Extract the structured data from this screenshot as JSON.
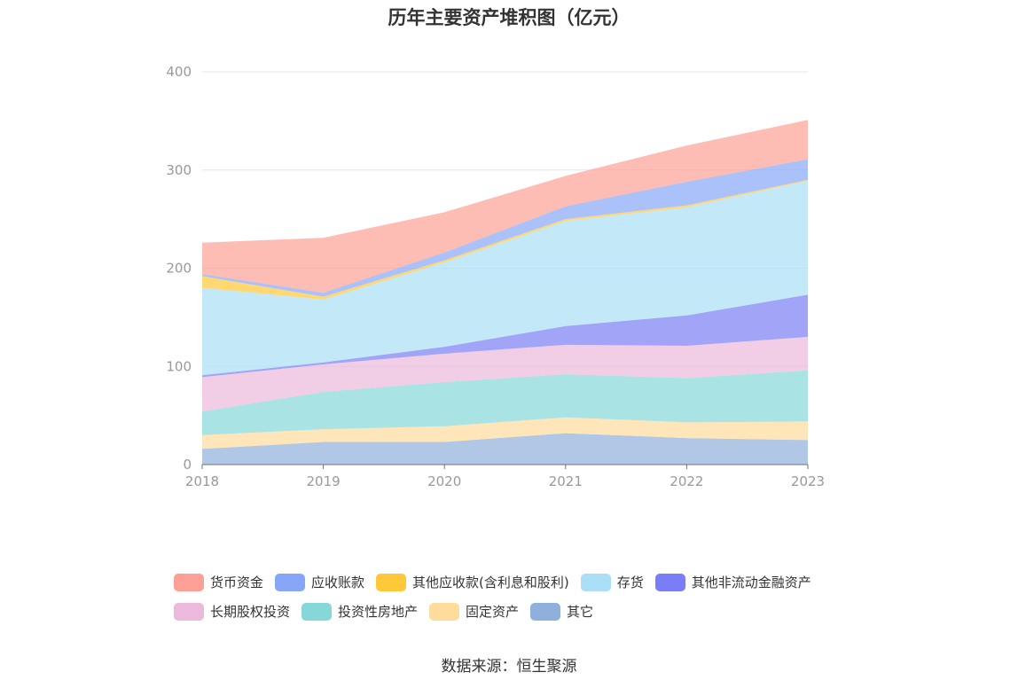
{
  "chart_data": {
    "type": "area",
    "stacked": true,
    "title": "历年主要资产堆积图（亿元）",
    "x": [
      "2018",
      "2019",
      "2020",
      "2021",
      "2022",
      "2023"
    ],
    "y_ticks": [
      "0",
      "100",
      "200",
      "300",
      "400"
    ],
    "ylim": [
      0,
      400
    ],
    "grid": true,
    "legend_position": "bottom",
    "series": [
      {
        "name": "其它",
        "color": "#8fb0dc",
        "values": [
          16,
          23,
          23,
          32,
          27,
          25
        ]
      },
      {
        "name": "固定资产",
        "color": "#ffdb9c",
        "values": [
          14,
          13,
          16,
          16,
          16,
          19
        ]
      },
      {
        "name": "投资性房地产",
        "color": "#86d7d7",
        "values": [
          24,
          38,
          45,
          44,
          45,
          52
        ]
      },
      {
        "name": "长期股权投资",
        "color": "#ebb9db",
        "values": [
          35,
          28,
          29,
          30,
          33,
          34
        ]
      },
      {
        "name": "其他非流动金融资产",
        "color": "#7a7df5",
        "values": [
          2,
          2,
          7,
          19,
          31,
          43
        ]
      },
      {
        "name": "存货",
        "color": "#aadff7",
        "values": [
          89,
          64,
          86,
          107,
          110,
          116
        ]
      },
      {
        "name": "其他应收款(含利息和股利)",
        "color": "#ffc838",
        "values": [
          12,
          3,
          2,
          2,
          2,
          1
        ]
      },
      {
        "name": "应收账款",
        "color": "#88a6f7",
        "values": [
          2,
          4,
          8,
          13,
          24,
          21
        ]
      },
      {
        "name": "货币资金",
        "color": "#fc9f94",
        "values": [
          32,
          56,
          41,
          31,
          37,
          40
        ]
      }
    ],
    "legend_order": [
      "货币资金",
      "应收账款",
      "其他应收款(含利息和股利)",
      "存货",
      "其他非流动金融资产",
      "长期股权投资",
      "投资性房地产",
      "固定资产",
      "其它"
    ]
  },
  "source": "数据来源：恒生聚源"
}
